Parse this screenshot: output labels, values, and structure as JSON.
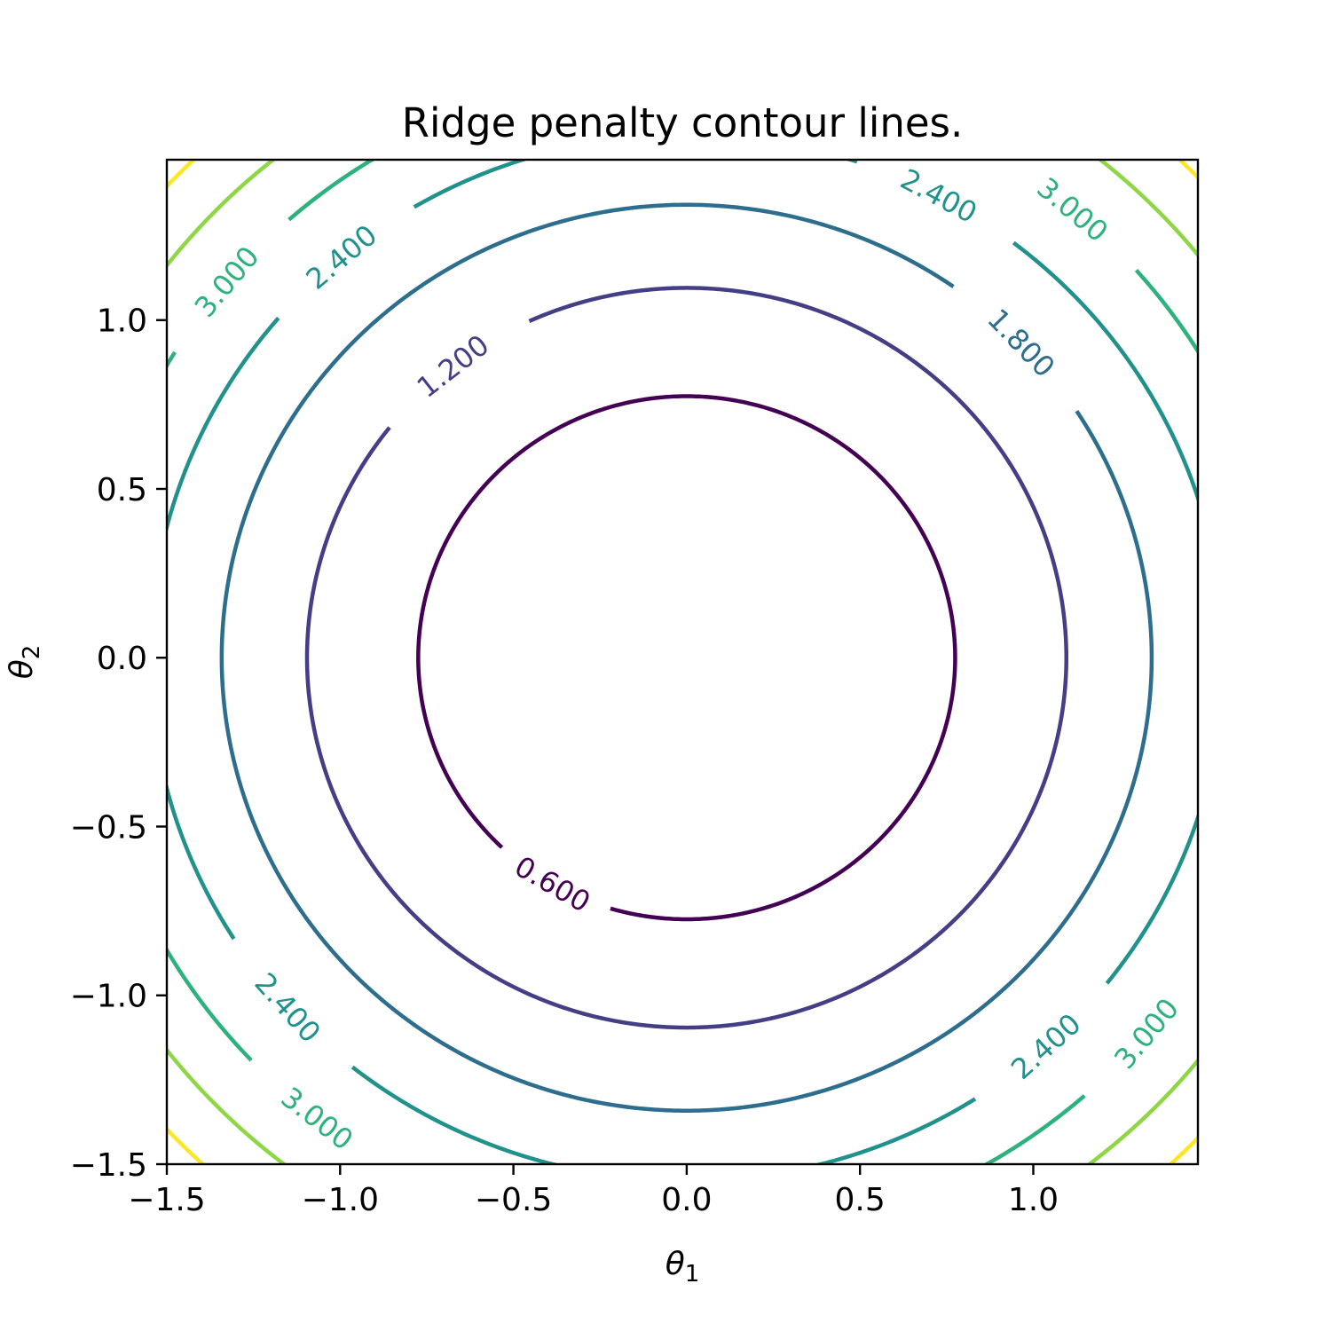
{
  "chart_data": {
    "type": "contour",
    "title": "Ridge penalty contour lines.",
    "xlabel": "θ",
    "xlabel_sub": "1",
    "ylabel": "θ",
    "ylabel_sub": "2",
    "xlim": [
      -1.5,
      1.475
    ],
    "ylim": [
      -1.5,
      1.475
    ],
    "x_ticks": [
      -1.5,
      -1.0,
      -0.5,
      0.0,
      0.5,
      1.0
    ],
    "x_tick_labels": [
      "−1.5",
      "−1.0",
      "−0.5",
      "0.0",
      "0.5",
      "1.0"
    ],
    "y_ticks": [
      -1.5,
      -1.0,
      -0.5,
      0.0,
      0.5,
      1.0
    ],
    "y_tick_labels": [
      "−1.5",
      "−1.0",
      "−0.5",
      "0.0",
      "0.5",
      "1.0"
    ],
    "function": "theta1^2 + theta2^2",
    "levels": [
      0.6,
      1.2,
      1.8,
      2.4,
      3.0,
      3.6,
      4.2
    ],
    "level_colors": [
      "#440154",
      "#433e85",
      "#2d6e8e",
      "#21918c",
      "#2db27d",
      "#8ed645",
      "#fde725"
    ],
    "grid": false,
    "contour_labels": [
      {
        "text": "0.600",
        "level": 0.6,
        "angle_deg": 240
      },
      {
        "text": "1.200",
        "level": 1.2,
        "angle_deg": 128
      },
      {
        "text": "1.800",
        "level": 1.8,
        "angle_deg": 44
      },
      {
        "text": "2.400",
        "level": 2.4,
        "angle_deg": 62
      },
      {
        "text": "2.400",
        "level": 2.4,
        "angle_deg": 130
      },
      {
        "text": "2.400",
        "level": 2.4,
        "angle_deg": 222
      },
      {
        "text": "2.400",
        "level": 2.4,
        "angle_deg": 312
      },
      {
        "text": "3.000",
        "level": 3.0,
        "angle_deg": 50
      },
      {
        "text": "3.000",
        "level": 3.0,
        "angle_deg": 140
      },
      {
        "text": "3.000",
        "level": 3.0,
        "angle_deg": 232
      },
      {
        "text": "3.000",
        "level": 3.0,
        "angle_deg": 320
      }
    ]
  }
}
